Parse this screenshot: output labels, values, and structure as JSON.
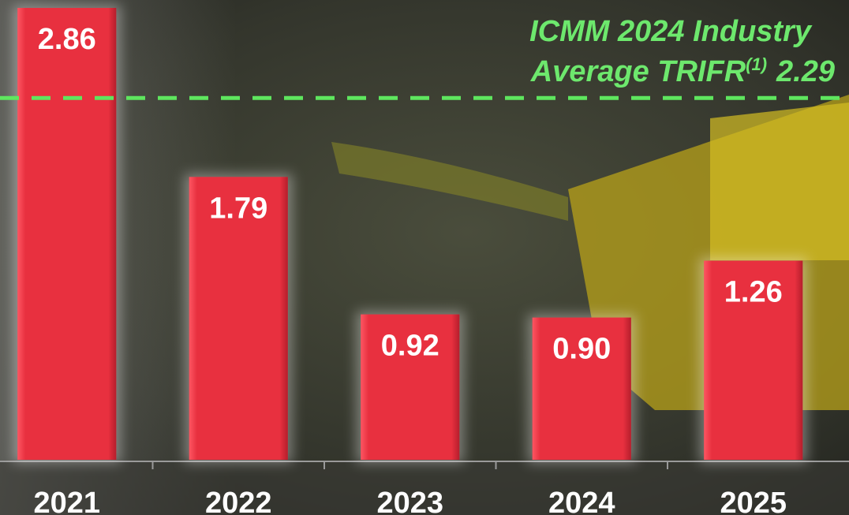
{
  "chart_data": {
    "type": "bar",
    "categories": [
      "2021",
      "2022",
      "2023",
      "2024",
      "2025"
    ],
    "values": [
      2.86,
      1.79,
      0.92,
      0.9,
      1.26
    ],
    "value_labels": [
      "2.86",
      "1.79",
      "0.92",
      "0.90",
      "1.26"
    ],
    "color": "#e8303f",
    "ylim": [
      0,
      2.9
    ],
    "reference_line": {
      "value": 2.29,
      "label": "2.29",
      "color": "#5ee65e"
    },
    "annotation": {
      "lines": [
        "ICMM 2024 Industry",
        "Average TRIFR"
      ],
      "superscript": "(1)"
    }
  }
}
